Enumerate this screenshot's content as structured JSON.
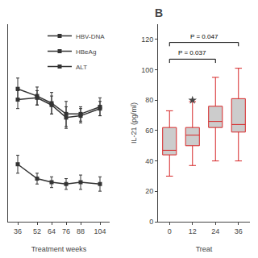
{
  "chart_data": [
    {
      "type": "line",
      "xlabel": "Treatment weeks",
      "x": [
        36,
        52,
        64,
        76,
        88,
        104
      ],
      "xlim": [
        28,
        112
      ],
      "xticks": [
        36,
        52,
        64,
        76,
        88,
        104
      ],
      "ylim": [
        1.5,
        7.0
      ],
      "tick_labels": "x",
      "legend": "upper right",
      "series": [
        {
          "name": "HBV-DNA",
          "color": "#333333",
          "marker": "square",
          "line_style": "solid",
          "values": [
            5.2,
            5.0,
            4.8,
            4.5,
            4.5,
            4.7
          ],
          "yerr": [
            0.3,
            0.25,
            0.3,
            0.35,
            0.2,
            0.25
          ]
        },
        {
          "name": "HBeAg",
          "color": "#333333",
          "marker": "square",
          "line_style": "solid",
          "values": [
            4.9,
            4.95,
            4.75,
            4.4,
            4.45,
            4.65
          ],
          "yerr": [
            0.25,
            0.2,
            0.25,
            0.3,
            0.2,
            0.2
          ]
        },
        {
          "name": "ALT",
          "color": "#333333",
          "marker": "square",
          "line_style": "solid",
          "values": [
            3.1,
            2.7,
            2.6,
            2.55,
            2.6,
            2.55
          ],
          "yerr": [
            0.25,
            0.15,
            0.15,
            0.15,
            0.2,
            0.2
          ]
        }
      ]
    },
    {
      "type": "box",
      "title": "B",
      "xlabel": "Treat",
      "ylabel": "IL-21 (pg/ml)",
      "categories": [
        "0",
        "12",
        "24",
        "36"
      ],
      "color": "#cccccc",
      "marker": "star",
      "boxes": [
        {
          "whislo": 30,
          "q1": 44,
          "med": 47,
          "q3": 62,
          "whishi": 73,
          "fliers": []
        },
        {
          "whislo": 37,
          "q1": 50,
          "med": 57,
          "q3": 62,
          "whishi": 79,
          "fliers": [
            80
          ]
        },
        {
          "whislo": 40,
          "q1": 62,
          "med": 66,
          "q3": 76,
          "whishi": 95,
          "fliers": []
        },
        {
          "whislo": 40,
          "q1": 59,
          "med": 64,
          "q3": 81,
          "whishi": 101,
          "fliers": []
        }
      ],
      "ylim": [
        0,
        130
      ],
      "yticks": [
        0,
        20,
        40,
        60,
        80,
        100,
        120
      ],
      "annotations": [
        {
          "text": "P = 0.037",
          "x1": "0",
          "x2": "24",
          "y": 107
        },
        {
          "text": "P = 0.047",
          "x1": "0",
          "x2": "36",
          "y": 118
        }
      ]
    }
  ]
}
